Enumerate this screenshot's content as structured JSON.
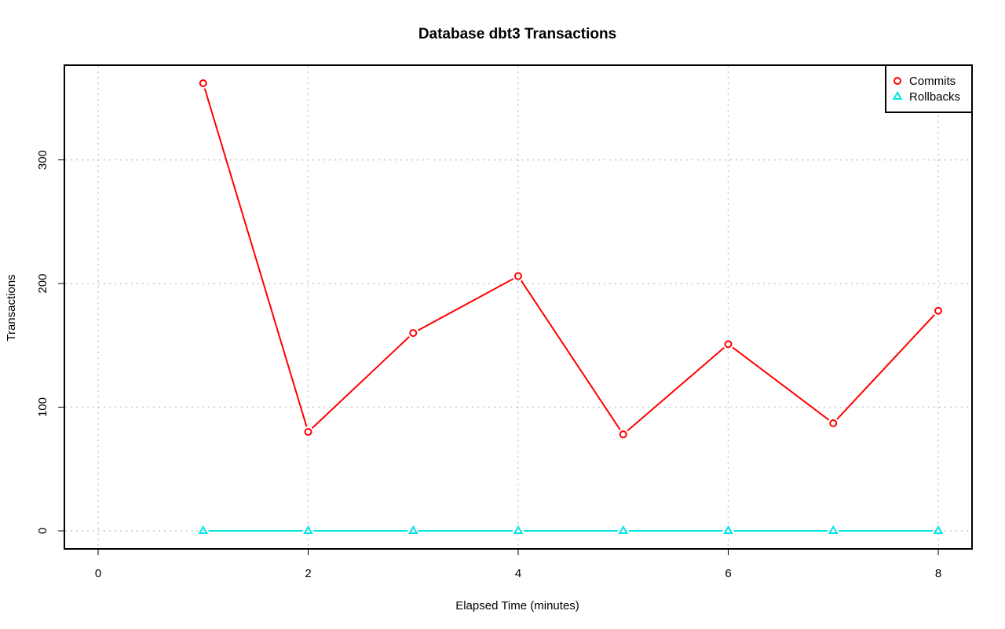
{
  "chart_data": {
    "type": "line",
    "title": "Database dbt3 Transactions",
    "xlabel": "Elapsed Time (minutes)",
    "ylabel": "Transactions",
    "xlim": [
      0,
      8
    ],
    "ylim": [
      0,
      362
    ],
    "x_ticks": [
      0,
      2,
      4,
      6,
      8
    ],
    "y_ticks": [
      0,
      100,
      200,
      300
    ],
    "grid": true,
    "legend_position": "top-right",
    "x": [
      1,
      2,
      3,
      4,
      5,
      6,
      7,
      8
    ],
    "series": [
      {
        "name": "Commits",
        "color": "#ff0000",
        "marker": "circle",
        "values": [
          362,
          80,
          160,
          206,
          78,
          151,
          87,
          178
        ]
      },
      {
        "name": "Rollbacks",
        "color": "#00e5e5",
        "marker": "triangle",
        "values": [
          0,
          0,
          0,
          0,
          0,
          0,
          0,
          0
        ]
      }
    ]
  }
}
